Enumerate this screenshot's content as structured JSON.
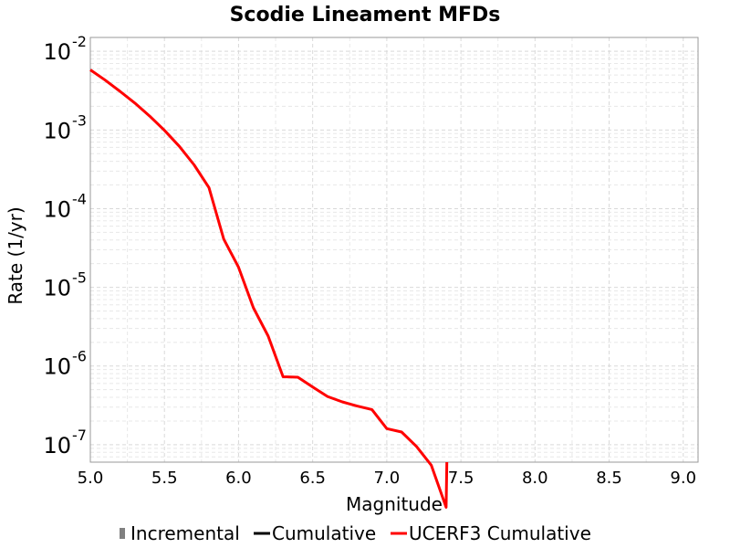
{
  "chart_data": {
    "type": "line",
    "title": "Scodie Lineament MFDs",
    "xlabel": "Magnitude",
    "ylabel": "Rate (1/yr)",
    "x_scale": "linear",
    "y_scale": "log",
    "xlim": [
      5.0,
      9.1
    ],
    "ylim": [
      6e-08,
      0.015
    ],
    "x_ticks": [
      "5.0",
      "5.5",
      "6.0",
      "6.5",
      "7.0",
      "7.5",
      "8.0",
      "8.5",
      "9.0"
    ],
    "y_ticks": [
      {
        "base": "10",
        "exp": "-2"
      },
      {
        "base": "10",
        "exp": "-3"
      },
      {
        "base": "10",
        "exp": "-4"
      },
      {
        "base": "10",
        "exp": "-5"
      },
      {
        "base": "10",
        "exp": "-6"
      },
      {
        "base": "10",
        "exp": "-7"
      }
    ],
    "grid": true,
    "legend_position": "bottom",
    "legend": [
      {
        "name": "Incremental",
        "color": "#808080",
        "marker": "square"
      },
      {
        "name": "Cumulative",
        "color": "#000000",
        "marker": "line"
      },
      {
        "name": "UCERF3 Cumulative",
        "color": "#ff0000",
        "marker": "line"
      }
    ],
    "series": [
      {
        "name": "UCERF3 Cumulative",
        "color": "#ff0000",
        "x": [
          5.0,
          5.1,
          5.2,
          5.3,
          5.4,
          5.5,
          5.6,
          5.7,
          5.8,
          5.9,
          6.0,
          6.1,
          6.2,
          6.3,
          6.4,
          6.5,
          6.6,
          6.7,
          6.8,
          6.9,
          7.0,
          7.1,
          7.2,
          7.3,
          7.4,
          7.405
        ],
        "y": [
          0.0058,
          0.0043,
          0.0031,
          0.0022,
          0.0015,
          0.00099,
          0.00062,
          0.00036,
          0.000185,
          4.1e-05,
          1.8e-05,
          5.5e-06,
          2.4e-06,
          7.3e-07,
          7.2e-07,
          5.4e-07,
          4.1e-07,
          3.5e-07,
          3.1e-07,
          2.8e-07,
          1.6e-07,
          1.45e-07,
          9.5e-08,
          5.5e-08,
          1.6e-08,
          6e-08
        ]
      }
    ]
  }
}
